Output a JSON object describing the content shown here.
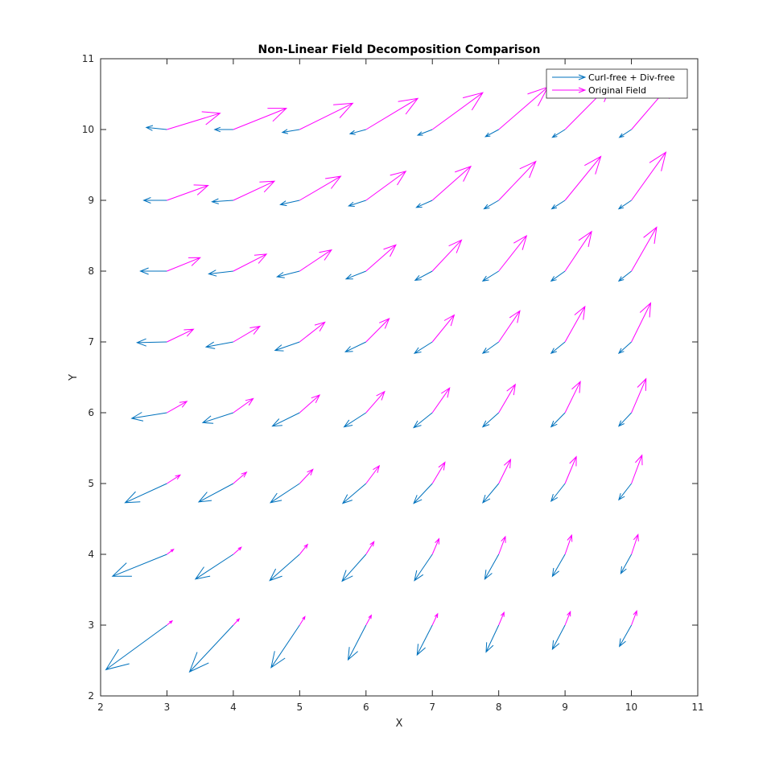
{
  "chart_data": {
    "type": "quiver",
    "title": "Non-Linear Field Decomposition Comparison",
    "xlabel": "X",
    "ylabel": "Y",
    "xlim": [
      2,
      11
    ],
    "ylim": [
      2,
      11
    ],
    "xticks": [
      2,
      3,
      4,
      5,
      6,
      7,
      8,
      9,
      10,
      11
    ],
    "yticks": [
      2,
      3,
      4,
      5,
      6,
      7,
      8,
      9,
      10,
      11
    ],
    "grid": false,
    "legend_position": "top-right",
    "grid_x": [
      3,
      4,
      5,
      6,
      7,
      8,
      9,
      10
    ],
    "grid_y": [
      3,
      4,
      5,
      6,
      7,
      8,
      9,
      10
    ],
    "series": [
      {
        "name": "Curl-free + Div-free",
        "color": "#0072BD",
        "u": [
          [
            -0.92,
            -0.66,
            -0.43,
            -0.27,
            -0.23,
            -0.19,
            -0.19,
            -0.18
          ],
          [
            -0.82,
            -0.57,
            -0.45,
            -0.36,
            -0.27,
            -0.21,
            -0.19,
            -0.16
          ],
          [
            -0.63,
            -0.52,
            -0.44,
            -0.35,
            -0.28,
            -0.24,
            -0.21,
            -0.19
          ],
          [
            -0.53,
            -0.46,
            -0.41,
            -0.33,
            -0.28,
            -0.24,
            -0.21,
            -0.19
          ],
          [
            -0.45,
            -0.41,
            -0.37,
            -0.31,
            -0.27,
            -0.24,
            -0.21,
            -0.19
          ],
          [
            -0.4,
            -0.37,
            -0.34,
            -0.3,
            -0.26,
            -0.24,
            -0.21,
            -0.19
          ],
          [
            -0.35,
            -0.32,
            -0.29,
            -0.26,
            -0.24,
            -0.22,
            -0.2,
            -0.19
          ],
          [
            -0.31,
            -0.28,
            -0.26,
            -0.24,
            -0.22,
            -0.2,
            -0.19,
            -0.18
          ]
        ],
        "v": [
          [
            -0.63,
            -0.66,
            -0.6,
            -0.49,
            -0.42,
            -0.38,
            -0.34,
            -0.3
          ],
          [
            -0.31,
            -0.35,
            -0.37,
            -0.38,
            -0.37,
            -0.35,
            -0.31,
            -0.27
          ],
          [
            -0.27,
            -0.26,
            -0.27,
            -0.28,
            -0.28,
            -0.27,
            -0.25,
            -0.23
          ],
          [
            -0.08,
            -0.14,
            -0.19,
            -0.2,
            -0.21,
            -0.2,
            -0.2,
            -0.19
          ],
          [
            -0.01,
            -0.07,
            -0.12,
            -0.14,
            -0.16,
            -0.16,
            -0.16,
            -0.16
          ],
          [
            0.0,
            -0.04,
            -0.08,
            -0.11,
            -0.13,
            -0.14,
            -0.14,
            -0.14
          ],
          [
            0.0,
            -0.02,
            -0.06,
            -0.08,
            -0.1,
            -0.12,
            -0.12,
            -0.12
          ],
          [
            0.03,
            0.0,
            -0.04,
            -0.06,
            -0.08,
            -0.1,
            -0.11,
            -0.11
          ]
        ]
      },
      {
        "name": "Original Field",
        "color": "#FF00FF",
        "u": [
          [
            0.08,
            0.09,
            0.08,
            0.08,
            0.08,
            0.08,
            0.08,
            0.08
          ],
          [
            0.1,
            0.12,
            0.12,
            0.12,
            0.1,
            0.1,
            0.1,
            0.1
          ],
          [
            0.2,
            0.2,
            0.2,
            0.2,
            0.19,
            0.18,
            0.17,
            0.16
          ],
          [
            0.3,
            0.3,
            0.3,
            0.28,
            0.26,
            0.25,
            0.23,
            0.22
          ],
          [
            0.4,
            0.4,
            0.38,
            0.35,
            0.33,
            0.32,
            0.3,
            0.29
          ],
          [
            0.5,
            0.5,
            0.48,
            0.45,
            0.44,
            0.42,
            0.4,
            0.38
          ],
          [
            0.62,
            0.62,
            0.62,
            0.6,
            0.58,
            0.56,
            0.54,
            0.52
          ],
          [
            0.8,
            0.8,
            0.8,
            0.78,
            0.76,
            0.74,
            0.72,
            0.68
          ]
        ],
        "v": [
          [
            0.06,
            0.09,
            0.12,
            0.14,
            0.16,
            0.18,
            0.19,
            0.2
          ],
          [
            0.07,
            0.1,
            0.14,
            0.18,
            0.22,
            0.25,
            0.27,
            0.28
          ],
          [
            0.12,
            0.16,
            0.2,
            0.25,
            0.3,
            0.34,
            0.38,
            0.4
          ],
          [
            0.16,
            0.2,
            0.25,
            0.3,
            0.35,
            0.4,
            0.44,
            0.48
          ],
          [
            0.18,
            0.22,
            0.28,
            0.33,
            0.38,
            0.44,
            0.5,
            0.55
          ],
          [
            0.19,
            0.24,
            0.3,
            0.37,
            0.44,
            0.5,
            0.56,
            0.62
          ],
          [
            0.21,
            0.27,
            0.34,
            0.41,
            0.48,
            0.55,
            0.62,
            0.68
          ],
          [
            0.23,
            0.3,
            0.37,
            0.44,
            0.52,
            0.6,
            0.68,
            0.74
          ]
        ]
      }
    ]
  }
}
